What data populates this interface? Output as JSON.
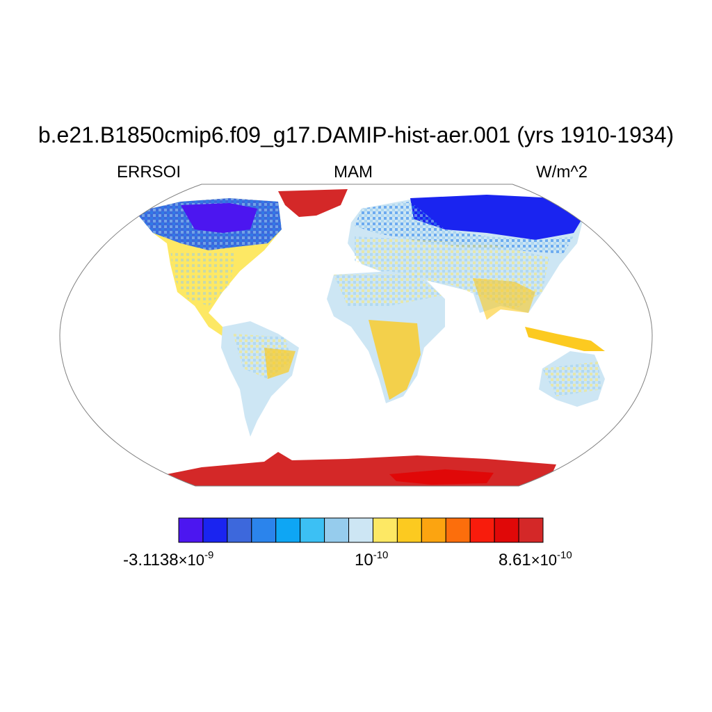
{
  "title": "b.e21.B1850cmip6.f09_g17.DAMIP-hist-aer.001 (yrs 1910-1934)",
  "subtitle_left": "ERRSOI",
  "subtitle_center": "MAM",
  "subtitle_right": "W/m^2",
  "projection": "robinson",
  "colorbar": {
    "colors": [
      "#4c16f0",
      "#1a24f0",
      "#3d68dc",
      "#2b84ec",
      "#0ea6f4",
      "#3cc0f4",
      "#96cced",
      "#cde6f4",
      "#fde864",
      "#fcca20",
      "#fca410",
      "#fc6e0c",
      "#f81c0c",
      "#e00808",
      "#d42828"
    ],
    "labels": {
      "min": {
        "mantissa": "-3.1138",
        "times": "×10",
        "exp": "-9"
      },
      "mid": {
        "mantissa": "",
        "times": "10",
        "exp": "-10"
      },
      "max": {
        "mantissa": "8.61",
        "times": "×10",
        "exp": "-10"
      }
    }
  },
  "map_colors": {
    "border": "#808080",
    "coast": "#000000",
    "greenland": "#d42828",
    "antarctica": "#d42828",
    "antarctica_core": "#e00808",
    "northern_high_lat": "#3d68dc",
    "siberia": "#1a24f0",
    "canada_core": "#4c16f0",
    "tropics_land": "#cde6f4",
    "arid_land": "#fcca20",
    "temperate_land": "#fde864"
  }
}
